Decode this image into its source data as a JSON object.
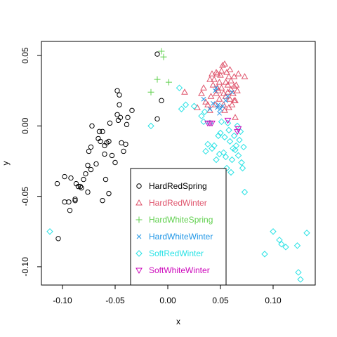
{
  "chart_data": {
    "type": "scatter",
    "title": "",
    "xlabel": "x",
    "ylabel": "y",
    "xlim": [
      -0.12,
      0.14
    ],
    "ylim": [
      -0.113,
      0.06
    ],
    "xticks": [
      -0.1,
      -0.05,
      0.0,
      0.05,
      0.1
    ],
    "xtick_labels": [
      "-0.10",
      "-0.05",
      "0.00",
      "0.05",
      "0.10"
    ],
    "yticks": [
      -0.1,
      -0.05,
      0.0,
      0.05
    ],
    "ytick_labels": [
      "-0.10",
      "-0.05",
      "0.00",
      "0.05"
    ],
    "grid": false,
    "legend_position": "bottom-center",
    "series": [
      {
        "name": "HardRedSpring",
        "color": "#000000",
        "marker": "circle",
        "points": [
          [
            -0.105,
            -0.041
          ],
          [
            -0.098,
            -0.036
          ],
          [
            -0.092,
            -0.037
          ],
          [
            -0.087,
            -0.041
          ],
          [
            -0.085,
            -0.043
          ],
          [
            -0.083,
            -0.043
          ],
          [
            -0.082,
            -0.044
          ],
          [
            -0.08,
            -0.038
          ],
          [
            -0.078,
            -0.034
          ],
          [
            -0.076,
            -0.028
          ],
          [
            -0.075,
            -0.018
          ],
          [
            -0.073,
            -0.015
          ],
          [
            -0.072,
            0.0
          ],
          [
            -0.066,
            -0.009
          ],
          [
            -0.065,
            -0.004
          ],
          [
            -0.064,
            -0.011
          ],
          [
            -0.062,
            -0.004
          ],
          [
            -0.06,
            -0.014
          ],
          [
            -0.06,
            -0.02
          ],
          [
            -0.058,
            -0.012
          ],
          [
            -0.056,
            -0.011
          ],
          [
            -0.055,
            0.002
          ],
          [
            -0.053,
            -0.021
          ],
          [
            -0.05,
            -0.026
          ],
          [
            -0.048,
            0.008
          ],
          [
            -0.048,
            0.025
          ],
          [
            -0.047,
            0.004
          ],
          [
            -0.046,
            0.022
          ],
          [
            -0.046,
            0.015
          ],
          [
            -0.045,
            0.006
          ],
          [
            -0.044,
            -0.012
          ],
          [
            -0.042,
            -0.018
          ],
          [
            -0.04,
            -0.013
          ],
          [
            -0.039,
            0.001
          ],
          [
            -0.038,
            0.006
          ],
          [
            -0.034,
            0.011
          ],
          [
            -0.01,
            0.051
          ],
          [
            -0.01,
            0.005
          ],
          [
            -0.006,
            0.018
          ],
          [
            -0.098,
            -0.054
          ],
          [
            -0.094,
            -0.054
          ],
          [
            -0.093,
            -0.06
          ],
          [
            -0.088,
            -0.052
          ],
          [
            -0.088,
            -0.053
          ],
          [
            -0.076,
            -0.047
          ],
          [
            -0.073,
            -0.031
          ],
          [
            -0.068,
            -0.027
          ],
          [
            -0.062,
            -0.053
          ],
          [
            -0.059,
            -0.038
          ],
          [
            -0.056,
            -0.048
          ],
          [
            -0.104,
            -0.08
          ]
        ]
      },
      {
        "name": "HardRedWinter",
        "color": "#DF536B",
        "marker": "triangle",
        "points": [
          [
            0.016,
            0.024
          ],
          [
            0.028,
            0.013
          ],
          [
            0.032,
            0.023
          ],
          [
            0.034,
            0.027
          ],
          [
            0.036,
            0.017
          ],
          [
            0.038,
            0.015
          ],
          [
            0.04,
            0.011
          ],
          [
            0.04,
            0.033
          ],
          [
            0.041,
            0.021
          ],
          [
            0.042,
            0.037
          ],
          [
            0.043,
            0.029
          ],
          [
            0.044,
            0.033
          ],
          [
            0.045,
            0.015
          ],
          [
            0.046,
            0.023
          ],
          [
            0.047,
            0.027
          ],
          [
            0.047,
            0.037
          ],
          [
            0.048,
            0.025
          ],
          [
            0.049,
            0.031
          ],
          [
            0.049,
            0.019
          ],
          [
            0.05,
            0.036
          ],
          [
            0.051,
            0.027
          ],
          [
            0.051,
            0.039
          ],
          [
            0.052,
            0.043
          ],
          [
            0.053,
            0.015
          ],
          [
            0.053,
            0.023
          ],
          [
            0.054,
            0.044
          ],
          [
            0.055,
            0.031
          ],
          [
            0.055,
            0.021
          ],
          [
            0.056,
            0.038
          ],
          [
            0.057,
            0.024
          ],
          [
            0.057,
            0.029
          ],
          [
            0.058,
            0.013
          ],
          [
            0.058,
            0.035
          ],
          [
            0.059,
            0.019
          ],
          [
            0.059,
            0.04
          ],
          [
            0.06,
            0.026
          ],
          [
            0.06,
            0.032
          ],
          [
            0.061,
            0.015
          ],
          [
            0.062,
            0.023
          ],
          [
            0.063,
            0.028
          ],
          [
            0.063,
            0.035
          ],
          [
            0.064,
            0.018
          ],
          [
            0.065,
            0.029
          ],
          [
            0.066,
            0.025
          ],
          [
            0.067,
            0.037
          ],
          [
            0.073,
            0.035
          ],
          [
            0.064,
            0.006
          ],
          [
            0.063,
            0.018
          ],
          [
            0.046,
            0.038
          ],
          [
            0.054,
            0.011
          ]
        ]
      },
      {
        "name": "HardWhiteSpring",
        "color": "#61D04F",
        "marker": "plus",
        "points": [
          [
            -0.016,
            0.024
          ],
          [
            -0.01,
            0.033
          ],
          [
            -0.006,
            0.053
          ],
          [
            -0.004,
            0.049
          ],
          [
            0.001,
            0.031
          ]
        ]
      },
      {
        "name": "HardWhiteWinter",
        "color": "#2297E6",
        "marker": "cross",
        "points": [
          [
            0.034,
            0.019
          ],
          [
            0.04,
            0.012
          ],
          [
            0.043,
            0.016
          ],
          [
            0.045,
            0.025
          ],
          [
            0.046,
            0.027
          ],
          [
            0.048,
            0.015
          ],
          [
            0.049,
            0.009
          ],
          [
            0.05,
            0.012
          ],
          [
            0.052,
            0.014
          ],
          [
            0.055,
            0.018
          ],
          [
            0.057,
            0.021
          ],
          [
            0.061,
            0.024
          ],
          [
            0.047,
            0.013
          ]
        ]
      },
      {
        "name": "SoftRedWinter",
        "color": "#28E2E5",
        "marker": "diamond",
        "points": [
          [
            -0.112,
            -0.075
          ],
          [
            -0.016,
            0.0
          ],
          [
            0.011,
            0.027
          ],
          [
            0.013,
            0.012
          ],
          [
            0.017,
            0.015
          ],
          [
            0.025,
            0.014
          ],
          [
            0.032,
            0.007
          ],
          [
            0.034,
            0.003
          ],
          [
            0.035,
            0.01
          ],
          [
            0.036,
            -0.018
          ],
          [
            0.038,
            -0.013
          ],
          [
            0.04,
            0.002
          ],
          [
            0.042,
            -0.016
          ],
          [
            0.044,
            -0.014
          ],
          [
            0.046,
            -0.024
          ],
          [
            0.048,
            -0.007
          ],
          [
            0.049,
            -0.02
          ],
          [
            0.05,
            -0.005
          ],
          [
            0.051,
            0.003
          ],
          [
            0.053,
            -0.019
          ],
          [
            0.054,
            -0.008
          ],
          [
            0.055,
            -0.022
          ],
          [
            0.056,
            -0.03
          ],
          [
            0.057,
            0.002
          ],
          [
            0.058,
            -0.003
          ],
          [
            0.059,
            -0.011
          ],
          [
            0.06,
            -0.033
          ],
          [
            0.061,
            -0.024
          ],
          [
            0.062,
            -0.016
          ],
          [
            0.063,
            -0.007
          ],
          [
            0.064,
            -0.017
          ],
          [
            0.065,
            -0.014
          ],
          [
            0.066,
            0.0
          ],
          [
            0.067,
            -0.021
          ],
          [
            0.068,
            -0.01
          ],
          [
            0.069,
            -0.004
          ],
          [
            0.07,
            -0.026
          ],
          [
            0.071,
            -0.03
          ],
          [
            0.072,
            -0.015
          ],
          [
            0.073,
            -0.047
          ],
          [
            0.092,
            -0.091
          ],
          [
            0.1,
            -0.075
          ],
          [
            0.106,
            -0.081
          ],
          [
            0.108,
            -0.084
          ],
          [
            0.112,
            -0.086
          ],
          [
            0.123,
            -0.085
          ],
          [
            0.124,
            -0.104
          ],
          [
            0.126,
            -0.109
          ],
          [
            0.132,
            -0.076
          ]
        ]
      },
      {
        "name": "SoftWhiteWinter",
        "color": "#CD0BBC",
        "marker": "triangle-down",
        "points": [
          [
            0.038,
            0.002
          ],
          [
            0.04,
            0.002
          ],
          [
            0.042,
            0.002
          ],
          [
            0.057,
            0.004
          ],
          [
            0.066,
            -0.004
          ],
          [
            0.067,
            -0.002
          ]
        ]
      }
    ]
  }
}
